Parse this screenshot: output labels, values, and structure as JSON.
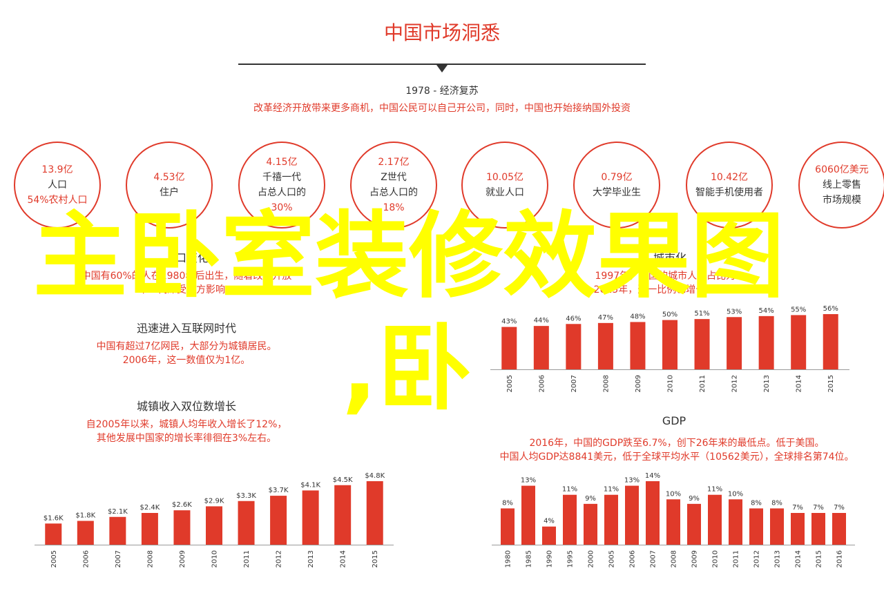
{
  "title": "中国市场洞悉",
  "era": {
    "label": "1978 - 经济复苏",
    "desc": "改革经济开放带来更多商机，中国公民可以自己开公司，同时，中国也开始接纳国外投资"
  },
  "stats": [
    {
      "lines": [
        {
          "text": "13.9亿",
          "red": true
        },
        {
          "text": "人口",
          "red": false
        },
        {
          "text": "54%农村人口",
          "red": true
        }
      ]
    },
    {
      "lines": [
        {
          "text": "4.53亿",
          "red": true
        },
        {
          "text": "住户",
          "red": false
        }
      ]
    },
    {
      "lines": [
        {
          "text": "4.15亿",
          "red": true
        },
        {
          "text": "千禧一代",
          "red": false
        },
        {
          "text": "占总人口的",
          "red": false
        },
        {
          "text": "30%",
          "red": true
        }
      ]
    },
    {
      "lines": [
        {
          "text": "2.17亿",
          "red": true
        },
        {
          "text": "Z世代",
          "red": false
        },
        {
          "text": "占总人口的",
          "red": false
        },
        {
          "text": "18%",
          "red": true
        }
      ]
    },
    {
      "lines": [
        {
          "text": "10.05亿",
          "red": true
        },
        {
          "text": "就业人口",
          "red": false
        }
      ]
    },
    {
      "lines": [
        {
          "text": "0.79亿",
          "red": true
        },
        {
          "text": "大学毕业生",
          "red": false
        }
      ]
    },
    {
      "lines": [
        {
          "text": "10.42亿",
          "red": true
        },
        {
          "text": "智能手机使用者",
          "red": false
        }
      ]
    },
    {
      "lines": [
        {
          "text": "6060亿美元",
          "red": true
        },
        {
          "text": "线上零售",
          "red": false
        },
        {
          "text": "市场规模",
          "red": false
        }
      ]
    }
  ],
  "sections": {
    "population": {
      "title": "人口变化",
      "desc1": "中国有60%的人在1980年后出生，随着改革开放",
      "desc2": "年一代深受西方影响。"
    },
    "urban": {
      "title": "城市化",
      "desc1": "1997年，中国的城市人口占比为...",
      "desc2": "2015年，这一比例已增长到56%。"
    },
    "internet": {
      "title": "迅速进入互联网时代",
      "desc1": "中国有超过7亿网民，大部分为城镇居民。",
      "desc2": "2006年，这一数值仅为1亿。"
    },
    "income": {
      "title": "城镇收入双位数增长",
      "desc1": "自2005年以来，城镇人均年收入增长了12%，",
      "desc2": "其他发展中国家的增长率徘徊在3%左右。"
    },
    "gdp": {
      "title": "GDP",
      "desc1": "2016年，中国的GDP跌至6.7%，创下26年来的最低点。低于美国。",
      "desc2": "中国人均GDP达8841美元，低于全球平均水平（10562美元），全球排名第74位。"
    }
  },
  "overlay": {
    "title": "主卧室装修效果图",
    "sub": ",卧"
  },
  "colors": {
    "accent": "#e03a2a",
    "overlay": "#ffff00"
  },
  "chart_data": [
    {
      "type": "bar",
      "name": "urbanization",
      "categories": [
        "2005",
        "2006",
        "2007",
        "2008",
        "2009",
        "2010",
        "2011",
        "2012",
        "2013",
        "2014",
        "2015"
      ],
      "values": [
        43,
        44,
        46,
        47,
        48,
        50,
        51,
        53,
        54,
        55,
        56
      ],
      "labels": [
        "43%",
        "44%",
        "46%",
        "47%",
        "48%",
        "50%",
        "51%",
        "53%",
        "54%",
        "55%",
        "56%"
      ],
      "ylim": [
        0,
        56
      ]
    },
    {
      "type": "bar",
      "name": "income",
      "categories": [
        "2005",
        "2006",
        "2007",
        "2008",
        "2009",
        "2010",
        "2011",
        "2012",
        "2013",
        "2014",
        "2015"
      ],
      "values": [
        1.6,
        1.8,
        2.1,
        2.4,
        2.6,
        2.9,
        3.3,
        3.7,
        4.1,
        4.5,
        4.8
      ],
      "labels": [
        "$1.6K",
        "$1.8K",
        "$2.1K",
        "$2.4K",
        "$2.6K",
        "$2.9K",
        "$3.3K",
        "$3.7K",
        "$4.1K",
        "$4.5K",
        "$4.8K"
      ],
      "ylim": [
        0,
        4.8
      ]
    },
    {
      "type": "bar",
      "name": "gdp",
      "categories": [
        "1980",
        "1985",
        "1990",
        "1995",
        "2000",
        "2005",
        "2006",
        "2007",
        "2008",
        "2009",
        "2010",
        "2011",
        "2012",
        "2013",
        "2014",
        "2015",
        "2016"
      ],
      "values": [
        8,
        13,
        4,
        11,
        9,
        11,
        13,
        14,
        10,
        9,
        11,
        10,
        8,
        8,
        7,
        7,
        7
      ],
      "labels": [
        "8%",
        "13%",
        "4%",
        "11%",
        "9%",
        "11%",
        "13%",
        "14%",
        "10%",
        "9%",
        "11%",
        "10%",
        "8%",
        "8%",
        "7%",
        "7%",
        "7%"
      ],
      "ylim": [
        0,
        14
      ]
    }
  ]
}
